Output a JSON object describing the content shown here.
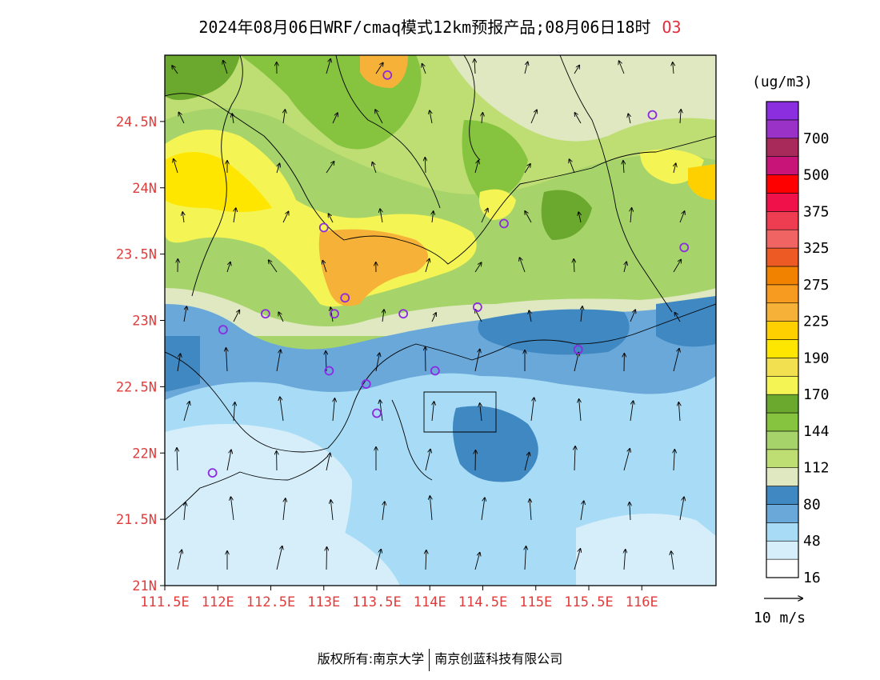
{
  "title": {
    "text": "2024年08月06日WRF/cmaq模式12km预报产品;08月06日18时",
    "species": "O3"
  },
  "footer": {
    "left": "版权所有:南京大学",
    "right": "南京创蓝科技有限公司"
  },
  "colors": {
    "axis_label": "#e03c3c",
    "station_marker": "#8a2be2"
  },
  "chart_data": {
    "type": "heatmap",
    "xlim": [
      111.5,
      116.7
    ],
    "ylim": [
      21.0,
      25.0
    ],
    "x_ticks": [
      {
        "value": 111.5,
        "label": "111.5E"
      },
      {
        "value": 112.0,
        "label": "112E"
      },
      {
        "value": 112.5,
        "label": "112.5E"
      },
      {
        "value": 113.0,
        "label": "113E"
      },
      {
        "value": 113.5,
        "label": "113.5E"
      },
      {
        "value": 114.0,
        "label": "114E"
      },
      {
        "value": 114.5,
        "label": "114.5E"
      },
      {
        "value": 115.0,
        "label": "115E"
      },
      {
        "value": 115.5,
        "label": "115.5E"
      },
      {
        "value": 116.0,
        "label": "116E"
      }
    ],
    "y_ticks": [
      {
        "value": 21.0,
        "label": "21N"
      },
      {
        "value": 21.5,
        "label": "21.5N"
      },
      {
        "value": 22.0,
        "label": "22N"
      },
      {
        "value": 22.5,
        "label": "22.5N"
      },
      {
        "value": 23.0,
        "label": "23N"
      },
      {
        "value": 23.5,
        "label": "23.5N"
      },
      {
        "value": 24.0,
        "label": "24N"
      },
      {
        "value": 24.5,
        "label": "24.5N"
      }
    ],
    "legend": {
      "unit": "(ug/m3)",
      "levels": [
        {
          "color": "#ffffff",
          "label": "16"
        },
        {
          "color": "#d6eefa",
          "label": ""
        },
        {
          "color": "#a8dcf6",
          "label": "48"
        },
        {
          "color": "#6aa8da",
          "label": ""
        },
        {
          "color": "#3f88c2",
          "label": "80"
        },
        {
          "color": "#dfe8c0",
          "label": ""
        },
        {
          "color": "#bede74",
          "label": "112"
        },
        {
          "color": "#a6d46a",
          "label": ""
        },
        {
          "color": "#86c440",
          "label": "144"
        },
        {
          "color": "#6aa82e",
          "label": ""
        },
        {
          "color": "#f4f454",
          "label": "170"
        },
        {
          "color": "#f2e050",
          "label": ""
        },
        {
          "color": "#ffe600",
          "label": "190"
        },
        {
          "color": "#ffd000",
          "label": ""
        },
        {
          "color": "#f6b238",
          "label": "225"
        },
        {
          "color": "#f69a20",
          "label": ""
        },
        {
          "color": "#f08200",
          "label": "275"
        },
        {
          "color": "#ee5a24",
          "label": ""
        },
        {
          "color": "#f06464",
          "label": "325"
        },
        {
          "color": "#ee3c50",
          "label": ""
        },
        {
          "color": "#f0104a",
          "label": "375"
        },
        {
          "color": "#ff0000",
          "label": ""
        },
        {
          "color": "#c81478",
          "label": "500"
        },
        {
          "color": "#a82a5a",
          "label": ""
        },
        {
          "color": "#9a32c8",
          "label": "700"
        },
        {
          "color": "#8a2ee0",
          "label": ""
        }
      ]
    },
    "wind_reference": {
      "label": "10 m/s"
    },
    "stations": [
      {
        "lon": 113.6,
        "lat": 24.85
      },
      {
        "lon": 116.1,
        "lat": 24.55
      },
      {
        "lon": 114.7,
        "lat": 23.73
      },
      {
        "lon": 113.0,
        "lat": 23.7
      },
      {
        "lon": 116.4,
        "lat": 23.55
      },
      {
        "lon": 113.2,
        "lat": 23.17
      },
      {
        "lon": 113.1,
        "lat": 23.05
      },
      {
        "lon": 112.45,
        "lat": 23.05
      },
      {
        "lon": 113.75,
        "lat": 23.05
      },
      {
        "lon": 114.45,
        "lat": 23.1
      },
      {
        "lon": 112.05,
        "lat": 22.93
      },
      {
        "lon": 115.4,
        "lat": 22.78
      },
      {
        "lon": 113.05,
        "lat": 22.62
      },
      {
        "lon": 114.05,
        "lat": 22.62
      },
      {
        "lon": 113.4,
        "lat": 22.52
      },
      {
        "lon": 113.5,
        "lat": 22.3
      },
      {
        "lon": 111.95,
        "lat": 21.85
      }
    ]
  }
}
